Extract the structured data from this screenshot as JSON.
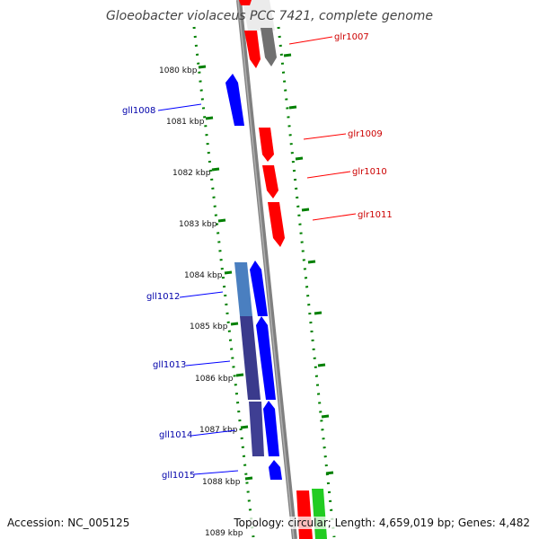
{
  "title": "Gloeobacter violaceus PCC 7421, complete genome",
  "footer": {
    "accession": "Accession: NC_005125",
    "topology": "Topology: circular; Length: 4,659,019 bp; Genes: 4,482"
  },
  "colors": {
    "plus_strand": "#ff0000",
    "minus_strand": "#0000ff",
    "pseudo": "#707070",
    "rna": "#22cc22",
    "ticks": "#008000",
    "backbone": "#888888",
    "light_blue_region": "#4a7fc0",
    "dark_blue_region": "#3a3a8c"
  },
  "scale_labels": [
    "1080 kbp",
    "1081 kbp",
    "1082 kbp",
    "1083 kbp",
    "1084 kbp",
    "1085 kbp",
    "1086 kbp",
    "1087 kbp",
    "1088 kbp",
    "1089 kbp"
  ],
  "gene_labels": {
    "plus": [
      "glr1007",
      "glr1009",
      "glr1010",
      "glr1011"
    ],
    "minus": [
      "gll1008",
      "gll1012",
      "gll1013",
      "gll1014",
      "gll1015"
    ]
  }
}
